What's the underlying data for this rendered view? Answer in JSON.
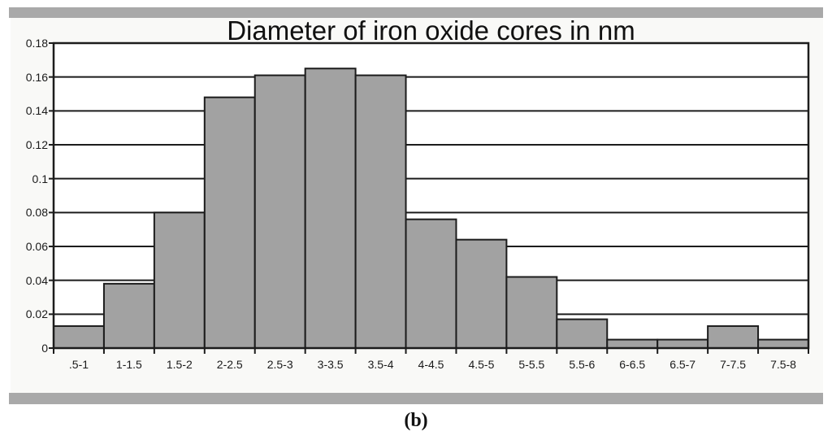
{
  "caption": "(b)",
  "colors": {
    "bar_fill": "#a2a2a2",
    "line": "#1c1c1c",
    "band_gray": "#a9a9a9",
    "figure_bg": "#f9f9f7",
    "plot_bg": "#ffffff"
  },
  "chart_data": {
    "type": "bar",
    "subtype": "histogram",
    "title": "Diameter of iron oxide cores in nm",
    "categories": [
      ".5-1",
      "1-1.5",
      "1.5-2",
      "2-2.5",
      "2.5-3",
      "3-3.5",
      "3.5-4",
      "4-4.5",
      "4.5-5",
      "5-5.5",
      "5.5-6",
      "6-6.5",
      "6.5-7",
      "7-7.5",
      "7.5-8"
    ],
    "values": [
      0.013,
      0.038,
      0.08,
      0.148,
      0.161,
      0.165,
      0.161,
      0.076,
      0.064,
      0.042,
      0.017,
      0.005,
      0.005,
      0.013,
      0.005
    ],
    "xlabel": "",
    "ylabel": "",
    "ylim": [
      0,
      0.18
    ],
    "ytick_step": 0.02,
    "ytick_labels": [
      "0",
      "0.02",
      "0.04",
      "0.06",
      "0.08",
      "0.1",
      "0.12",
      "0.14",
      "0.16",
      "0.18"
    ],
    "grid": "horizontal",
    "legend_position": "none",
    "bar_gap": 0
  }
}
